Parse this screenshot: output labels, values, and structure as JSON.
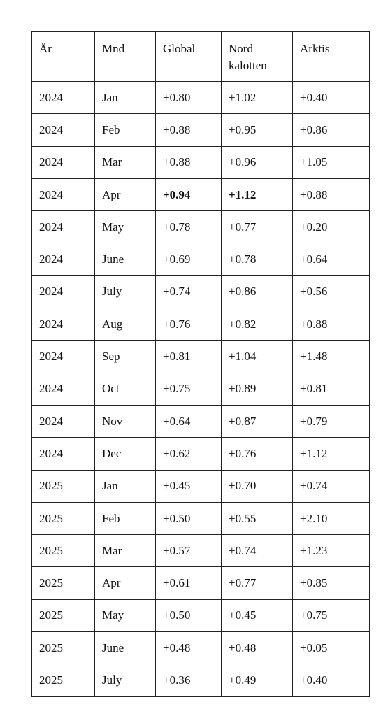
{
  "table": {
    "header": [
      "År",
      "Mnd",
      "Global",
      "Nord kalotten",
      "Arktis"
    ],
    "rows": [
      [
        "2024",
        "Jan",
        "+0.80",
        "+1.02",
        "+0.40"
      ],
      [
        "2024",
        "Feb",
        "+0.88",
        "+0.95",
        "+0.86"
      ],
      [
        "2024",
        "Mar",
        "+0.88",
        "+0.96",
        "+1.05"
      ],
      [
        "2024",
        "Apr",
        "+0.94",
        "+1.12",
        "+0.88"
      ],
      [
        "2024",
        "May",
        "+0.78",
        "+0.77",
        "+0.20"
      ],
      [
        "2024",
        "June",
        "+0.69",
        "+0.78",
        "+0.64"
      ],
      [
        "2024",
        "July",
        "+0.74",
        "+0.86",
        "+0.56"
      ],
      [
        "2024",
        "Aug",
        "+0.76",
        "+0.82",
        "+0.88"
      ],
      [
        "2024",
        "Sep",
        "+0.81",
        "+1.04",
        "+1.48"
      ],
      [
        "2024",
        "Oct",
        "+0.75",
        "+0.89",
        "+0.81"
      ],
      [
        "2024",
        "Nov",
        "+0.64",
        "+0.87",
        "+0.79"
      ],
      [
        "2024",
        "Dec",
        "+0.62",
        "+0.76",
        "+1.12"
      ],
      [
        "2025",
        "Jan",
        "+0.45",
        "+0.70",
        "+0.74"
      ],
      [
        "2025",
        "Feb",
        "+0.50",
        "+0.55",
        "+2.10"
      ],
      [
        "2025",
        "Mar",
        "+0.57",
        "+0.74",
        "+1.23"
      ],
      [
        "2025",
        "Apr",
        "+0.61",
        "+0.77",
        "+0.85"
      ],
      [
        "2025",
        "May",
        "+0.50",
        "+0.45",
        "+0.75"
      ],
      [
        "2025",
        "June",
        "+0.48",
        "+0.48",
        "+0.05"
      ],
      [
        "2025",
        "July",
        "+0.36",
        "+0.49",
        "+0.40"
      ]
    ]
  }
}
